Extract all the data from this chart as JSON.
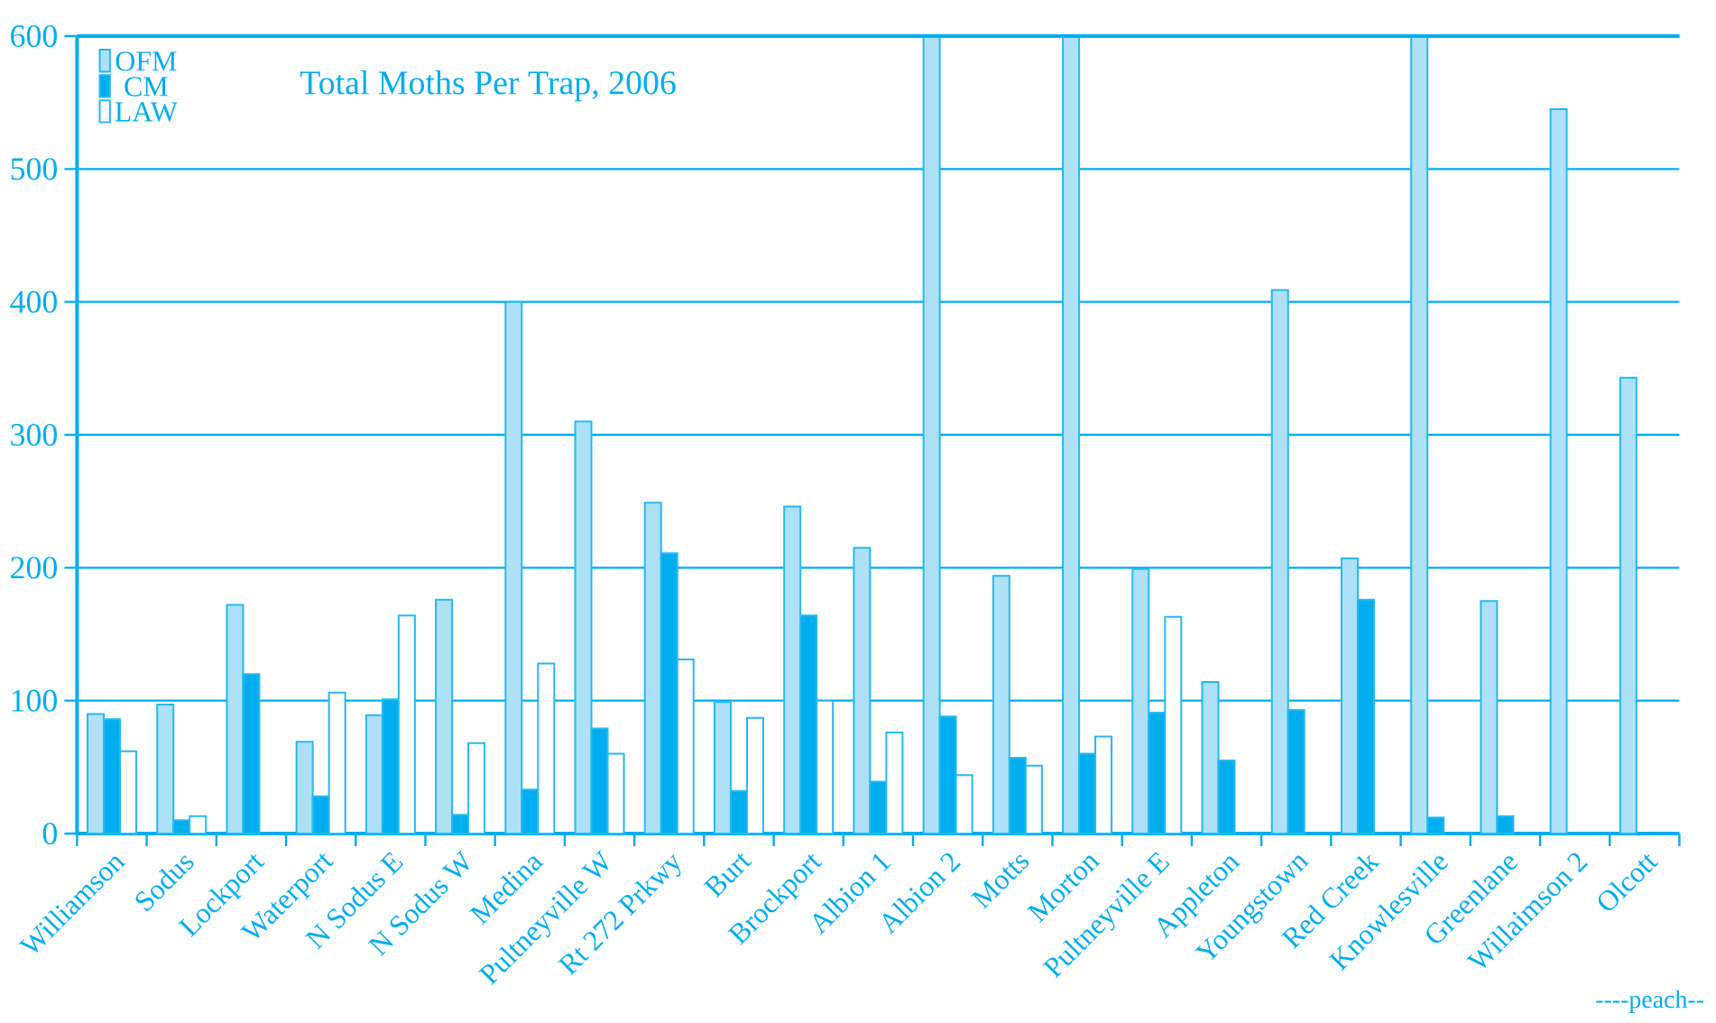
{
  "chart_data": {
    "type": "bar",
    "title": "Total Moths Per Trap, 2006",
    "categories": [
      "Williamson",
      "Sodus",
      "Lockport",
      "Waterport",
      "N Sodus E",
      "N Sodus W",
      "Medina",
      "Pultneyville W",
      "Rt 272 Prkwy",
      "Burt",
      "Brockport",
      "Albion 1",
      "Albion 2",
      "Motts",
      "Morton",
      "Pultneyville E",
      "Appleton",
      "Youngstown",
      "Red Creek",
      "Knowlesville",
      "Greenlane",
      "Willaimson 2",
      "Olcott"
    ],
    "series": [
      {
        "name": "OFM",
        "color": "#aee1f7",
        "values": [
          90,
          97,
          172,
          69,
          89,
          176,
          400,
          310,
          249,
          99,
          246,
          215,
          600,
          194,
          600,
          199,
          114,
          409,
          207,
          600,
          175,
          545,
          343
        ]
      },
      {
        "name": "CM",
        "color": "#00aeef",
        "values": [
          86,
          10,
          120,
          28,
          101,
          14,
          33,
          79,
          211,
          32,
          164,
          39,
          88,
          57,
          60,
          91,
          55,
          93,
          176,
          12,
          13,
          null,
          null
        ]
      },
      {
        "name": "LAW",
        "color": "#ffffff",
        "values": [
          62,
          13,
          null,
          106,
          164,
          68,
          128,
          60,
          131,
          87,
          100,
          76,
          44,
          51,
          73,
          163,
          null,
          null,
          null,
          null,
          null,
          null,
          null
        ]
      }
    ],
    "ylim": [
      0,
      600
    ],
    "yticks": [
      0,
      100,
      200,
      300,
      400,
      500,
      600
    ],
    "grid": "y",
    "legend": "top left",
    "annotations": [
      "----peach--"
    ]
  }
}
